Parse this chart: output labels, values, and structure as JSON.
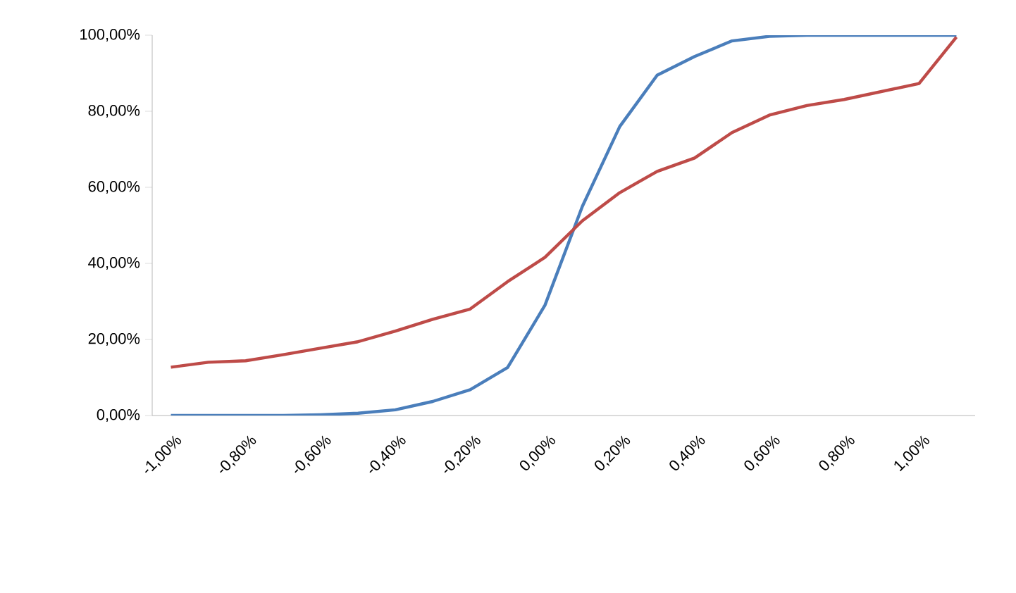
{
  "chart_data": {
    "type": "line",
    "categories": [
      "-1,00%",
      null,
      "-0,80%",
      null,
      "-0,60%",
      null,
      "-0,40%",
      null,
      "-0,20%",
      null,
      "0,00%",
      null,
      "0,20%",
      null,
      "0,40%",
      null,
      "0,60%",
      null,
      "0,80%",
      null,
      "1,00%",
      null
    ],
    "series": [
      {
        "color": "#4a7ebb",
        "values": [
          0,
          0,
          0,
          0,
          0.2,
          0.6,
          1.5,
          3.7,
          6.8,
          12.6,
          29,
          55,
          76,
          89.5,
          94.4,
          98.5,
          99.7,
          100,
          100,
          100,
          100,
          100
        ]
      },
      {
        "color": "#be4b48",
        "values": [
          12.7,
          14,
          14.4,
          16,
          17.7,
          19.4,
          22.2,
          25.3,
          28,
          35.2,
          41.6,
          51.2,
          58.6,
          64.2,
          67.7,
          74.4,
          79,
          81.5,
          83.1,
          85.2,
          87.3,
          99.5
        ]
      }
    ],
    "ylim": [
      0,
      100
    ],
    "yticks": [
      {
        "value": 0,
        "label": "0,00%"
      },
      {
        "value": 20,
        "label": "20,00%"
      },
      {
        "value": 40,
        "label": "40,00%"
      },
      {
        "value": 60,
        "label": "60,00%"
      },
      {
        "value": 80,
        "label": "80,00%"
      },
      {
        "value": 100,
        "label": "100,00%"
      }
    ],
    "grid": false,
    "legend": false,
    "marker": "none",
    "line_style": "solid"
  }
}
